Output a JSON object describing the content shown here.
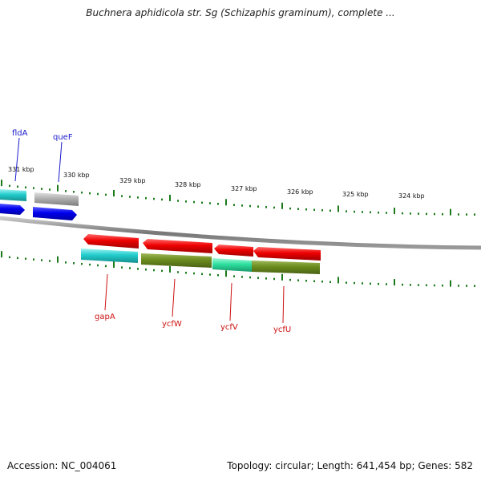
{
  "title": "Buchnera aphidicola str. Sg (Schizaphis graminum), complete ...",
  "footer": {
    "accession": "Accession: NC_004061",
    "topology": "Topology: circular; Length: 641,454 bp; Genes: 582"
  },
  "scale_labels": [
    "331 kbp",
    "330 kbp",
    "329 kbp",
    "328 kbp",
    "327 kbp",
    "326 kbp",
    "325 kbp",
    "324 kbp"
  ],
  "genes_top": [
    {
      "name": "fldA",
      "color": "#1a1acc"
    },
    {
      "name": "queF",
      "color": "#1a1acc"
    }
  ],
  "genes_bottom": [
    {
      "name": "gapA",
      "color": "#cc1111"
    },
    {
      "name": "ycfW",
      "color": "#cc1111"
    },
    {
      "name": "ycfV",
      "color": "#cc1111"
    },
    {
      "name": "ycfU",
      "color": "#cc1111"
    }
  ],
  "colors": {
    "backbone": "#8c8c8c",
    "ticks": "#1a7a1a",
    "forward_gene": "#1010e0",
    "reverse_gene": "#e00000",
    "cog_cyan": "#22cccc",
    "cog_olive": "#6b8c1e",
    "cog_green": "#2de0a0",
    "cog_gray": "#b0b0b0"
  }
}
